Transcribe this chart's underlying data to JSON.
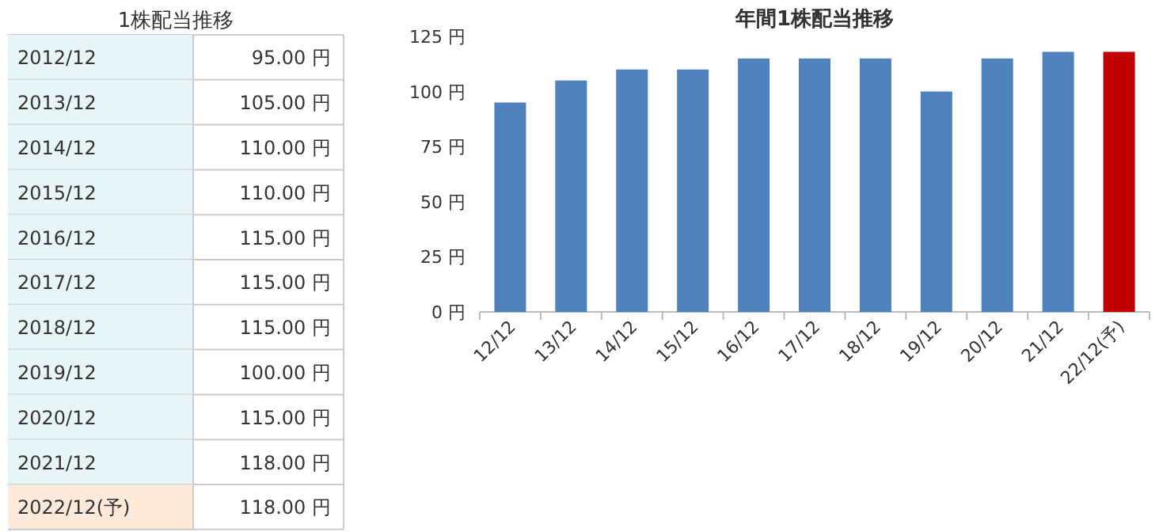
{
  "chart_data": [
    {
      "type": "other",
      "title": "1株配当推移",
      "categories": [
        "2012/12",
        "2013/12",
        "2014/12",
        "2015/12",
        "2016/12",
        "2017/12",
        "2018/12",
        "2019/12",
        "2020/12",
        "2021/12",
        "2022/12(予)"
      ],
      "values": [
        95,
        105,
        110,
        110,
        115,
        115,
        115,
        100,
        115,
        118,
        118
      ],
      "value_labels": [
        "95.00 円",
        "105.00 円",
        "110.00 円",
        "110.00 円",
        "115.00 円",
        "115.00 円",
        "115.00 円",
        "100.00 円",
        "115.00 円",
        "118.00 円",
        "118.00 円"
      ]
    },
    {
      "type": "bar",
      "title": "年間1株配当推移",
      "categories": [
        "12/12",
        "13/12",
        "14/12",
        "15/12",
        "16/12",
        "17/12",
        "18/12",
        "19/12",
        "20/12",
        "21/12",
        "22/12(予)"
      ],
      "values": [
        95,
        105,
        110,
        110,
        115,
        115,
        115,
        100,
        115,
        118,
        118
      ],
      "colors": [
        "#4f81bd",
        "#4f81bd",
        "#4f81bd",
        "#4f81bd",
        "#4f81bd",
        "#4f81bd",
        "#4f81bd",
        "#4f81bd",
        "#4f81bd",
        "#4f81bd",
        "#c00000"
      ],
      "ylim": [
        0,
        125
      ],
      "yticks": [
        {
          "value": 0,
          "label": "0 円"
        },
        {
          "value": 25,
          "label": "25 円"
        },
        {
          "value": 50,
          "label": "50 円"
        },
        {
          "value": 75,
          "label": "75 円"
        },
        {
          "value": 100,
          "label": "100 円"
        },
        {
          "value": 125,
          "label": "125 円"
        }
      ],
      "grid": false
    }
  ]
}
